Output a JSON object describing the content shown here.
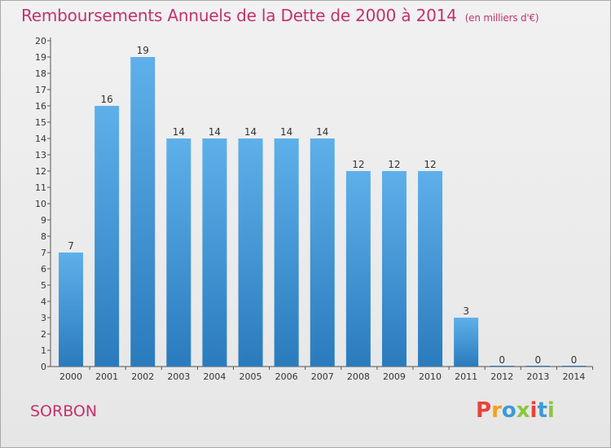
{
  "header": {
    "title": "Remboursements Annuels de la Dette de 2000 à 2014",
    "unit": "(en milliers d'€)"
  },
  "footer": {
    "commune": "SORBON",
    "logo_text": "Proxiti"
  },
  "colors": {
    "title": "#c1336a",
    "bar_top": "#5eb0ea",
    "bar_bottom": "#2a7bbd",
    "logo": [
      "#e8413c",
      "#f4a11c",
      "#3c9ad6",
      "#8cc63e",
      "#e8413c",
      "#3c9ad6",
      "#8cc63e"
    ]
  },
  "chart_data": {
    "type": "bar",
    "categories": [
      "2000",
      "2001",
      "2002",
      "2003",
      "2004",
      "2005",
      "2006",
      "2007",
      "2008",
      "2009",
      "2010",
      "2011",
      "2012",
      "2013",
      "2014"
    ],
    "values": [
      7,
      16,
      19,
      14,
      14,
      14,
      14,
      14,
      12,
      12,
      12,
      3,
      0,
      0,
      0
    ],
    "ylim": [
      0,
      20
    ],
    "yticks": [
      "0",
      "1",
      "2",
      "3",
      "4",
      "5",
      "6",
      "7",
      "8",
      "9",
      "10",
      "11",
      "12",
      "13",
      "14",
      "15",
      "16",
      "17",
      "18",
      "19",
      "20"
    ],
    "title": "Remboursements Annuels de la Dette de 2000 à 2014",
    "xlabel": "",
    "ylabel": ""
  }
}
